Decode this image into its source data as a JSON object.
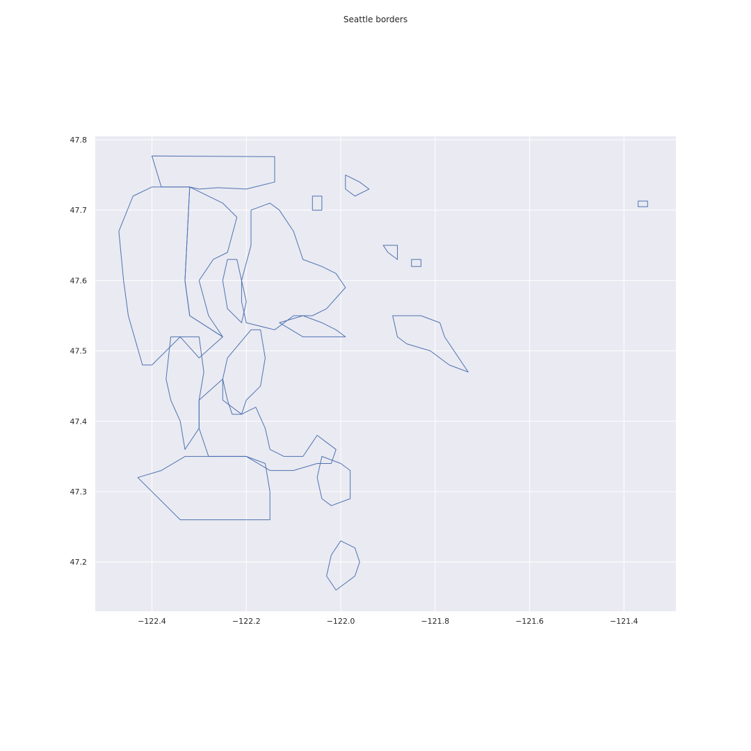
{
  "chart_data": {
    "type": "map",
    "title": "Seattle borders",
    "xlabel": "",
    "ylabel": "",
    "xlim": [
      -122.52,
      -121.29
    ],
    "ylim": [
      47.13,
      47.805
    ],
    "x_ticks": [
      -122.4,
      -122.2,
      -122.0,
      -121.8,
      -121.6,
      -121.4
    ],
    "x_tick_labels": [
      "−122.4",
      "−122.2",
      "−122.0",
      "−121.8",
      "−121.6",
      "−121.4"
    ],
    "y_ticks": [
      47.2,
      47.3,
      47.4,
      47.5,
      47.6,
      47.7,
      47.8
    ],
    "y_tick_labels": [
      "47.2",
      "47.3",
      "47.4",
      "47.5",
      "47.6",
      "47.7",
      "47.8"
    ],
    "grid": true,
    "background_color": "#eaeaf2",
    "line_color": "#4c72b0",
    "boundaries": [
      [
        [
          -122.4,
          47.777
        ],
        [
          -122.14,
          47.776
        ],
        [
          -122.14,
          47.74
        ],
        [
          -122.2,
          47.73
        ],
        [
          -122.26,
          47.732
        ],
        [
          -122.3,
          47.73
        ],
        [
          -122.32,
          47.733
        ],
        [
          -122.38,
          47.733
        ],
        [
          -122.39,
          47.755
        ],
        [
          -122.4,
          47.777
        ]
      ],
      [
        [
          -122.4,
          47.733
        ],
        [
          -122.32,
          47.733
        ],
        [
          -122.33,
          47.6
        ],
        [
          -122.32,
          47.55
        ],
        [
          -122.25,
          47.52
        ],
        [
          -122.3,
          47.49
        ],
        [
          -122.34,
          47.52
        ],
        [
          -122.4,
          47.48
        ],
        [
          -122.42,
          47.48
        ],
        [
          -122.45,
          47.55
        ],
        [
          -122.46,
          47.6
        ],
        [
          -122.47,
          47.67
        ],
        [
          -122.44,
          47.72
        ],
        [
          -122.4,
          47.733
        ]
      ],
      [
        [
          -122.32,
          47.733
        ],
        [
          -122.25,
          47.71
        ],
        [
          -122.22,
          47.69
        ],
        [
          -122.24,
          47.64
        ],
        [
          -122.27,
          47.63
        ],
        [
          -122.3,
          47.6
        ],
        [
          -122.28,
          47.55
        ],
        [
          -122.25,
          47.52
        ],
        [
          -122.32,
          47.55
        ],
        [
          -122.33,
          47.6
        ],
        [
          -122.32,
          47.733
        ]
      ],
      [
        [
          -122.24,
          47.63
        ],
        [
          -122.25,
          47.6
        ],
        [
          -122.24,
          47.56
        ],
        [
          -122.21,
          47.54
        ],
        [
          -122.2,
          47.57
        ],
        [
          -122.21,
          47.6
        ],
        [
          -122.22,
          47.63
        ],
        [
          -122.24,
          47.63
        ]
      ],
      [
        [
          -122.19,
          47.7
        ],
        [
          -122.15,
          47.71
        ],
        [
          -122.13,
          47.7
        ],
        [
          -122.1,
          47.67
        ],
        [
          -122.08,
          47.63
        ],
        [
          -122.04,
          47.62
        ],
        [
          -122.01,
          47.61
        ],
        [
          -121.99,
          47.59
        ],
        [
          -122.03,
          47.56
        ],
        [
          -122.06,
          47.55
        ],
        [
          -122.1,
          47.55
        ],
        [
          -122.14,
          47.53
        ],
        [
          -122.2,
          47.54
        ],
        [
          -122.21,
          47.57
        ],
        [
          -122.21,
          47.6
        ],
        [
          -122.19,
          47.65
        ],
        [
          -122.19,
          47.7
        ]
      ],
      [
        [
          -122.13,
          47.54
        ],
        [
          -122.08,
          47.55
        ],
        [
          -122.04,
          47.54
        ],
        [
          -122.01,
          47.53
        ],
        [
          -121.99,
          47.52
        ],
        [
          -122.05,
          47.52
        ],
        [
          -122.08,
          47.52
        ],
        [
          -122.13,
          47.54
        ]
      ],
      [
        [
          -122.19,
          47.53
        ],
        [
          -122.17,
          47.53
        ],
        [
          -122.16,
          47.49
        ],
        [
          -122.17,
          47.45
        ],
        [
          -122.2,
          47.43
        ],
        [
          -122.21,
          47.41
        ],
        [
          -122.23,
          47.41
        ],
        [
          -122.24,
          47.43
        ],
        [
          -122.25,
          47.46
        ],
        [
          -122.24,
          47.49
        ],
        [
          -122.19,
          47.53
        ]
      ],
      [
        [
          -122.36,
          47.52
        ],
        [
          -122.3,
          47.52
        ],
        [
          -122.29,
          47.47
        ],
        [
          -122.3,
          47.43
        ],
        [
          -122.3,
          47.39
        ],
        [
          -122.33,
          47.36
        ],
        [
          -122.34,
          47.4
        ],
        [
          -122.36,
          47.43
        ],
        [
          -122.37,
          47.46
        ],
        [
          -122.36,
          47.52
        ]
      ],
      [
        [
          -122.3,
          47.43
        ],
        [
          -122.25,
          47.46
        ],
        [
          -122.25,
          47.43
        ],
        [
          -122.21,
          47.41
        ],
        [
          -122.18,
          47.42
        ],
        [
          -122.16,
          47.39
        ],
        [
          -122.15,
          47.36
        ],
        [
          -122.12,
          47.35
        ],
        [
          -122.08,
          47.35
        ],
        [
          -122.05,
          47.38
        ],
        [
          -122.03,
          47.37
        ],
        [
          -122.01,
          47.36
        ],
        [
          -122.02,
          47.34
        ],
        [
          -122.05,
          47.34
        ],
        [
          -122.1,
          47.33
        ],
        [
          -122.15,
          47.33
        ],
        [
          -122.2,
          47.35
        ],
        [
          -122.24,
          47.35
        ],
        [
          -122.28,
          47.35
        ],
        [
          -122.3,
          47.39
        ],
        [
          -122.3,
          47.43
        ]
      ],
      [
        [
          -122.43,
          47.32
        ],
        [
          -122.38,
          47.33
        ],
        [
          -122.33,
          47.35
        ],
        [
          -122.28,
          47.35
        ],
        [
          -122.24,
          47.35
        ],
        [
          -122.2,
          47.35
        ],
        [
          -122.16,
          47.34
        ],
        [
          -122.15,
          47.3
        ],
        [
          -122.15,
          47.26
        ],
        [
          -122.22,
          47.26
        ],
        [
          -122.28,
          47.26
        ],
        [
          -122.34,
          47.26
        ],
        [
          -122.43,
          47.32
        ]
      ],
      [
        [
          -122.04,
          47.35
        ],
        [
          -122.0,
          47.34
        ],
        [
          -121.98,
          47.33
        ],
        [
          -121.98,
          47.29
        ],
        [
          -122.02,
          47.28
        ],
        [
          -122.04,
          47.29
        ],
        [
          -122.05,
          47.32
        ],
        [
          -122.04,
          47.35
        ]
      ],
      [
        [
          -122.0,
          47.23
        ],
        [
          -121.97,
          47.22
        ],
        [
          -121.96,
          47.2
        ],
        [
          -121.97,
          47.18
        ],
        [
          -122.01,
          47.16
        ],
        [
          -122.03,
          47.18
        ],
        [
          -122.02,
          47.21
        ],
        [
          -122.0,
          47.23
        ]
      ],
      [
        [
          -121.99,
          47.75
        ],
        [
          -121.96,
          47.74
        ],
        [
          -121.94,
          47.73
        ],
        [
          -121.97,
          47.72
        ],
        [
          -121.99,
          47.73
        ],
        [
          -121.99,
          47.75
        ]
      ],
      [
        [
          -122.06,
          47.72
        ],
        [
          -122.04,
          47.72
        ],
        [
          -122.04,
          47.7
        ],
        [
          -122.06,
          47.7
        ],
        [
          -122.06,
          47.72
        ]
      ],
      [
        [
          -121.91,
          47.65
        ],
        [
          -121.88,
          47.65
        ],
        [
          -121.88,
          47.63
        ],
        [
          -121.9,
          47.64
        ],
        [
          -121.91,
          47.65
        ]
      ],
      [
        [
          -121.85,
          47.63
        ],
        [
          -121.83,
          47.63
        ],
        [
          -121.83,
          47.62
        ],
        [
          -121.85,
          47.62
        ],
        [
          -121.85,
          47.63
        ]
      ],
      [
        [
          -121.89,
          47.55
        ],
        [
          -121.83,
          47.55
        ],
        [
          -121.79,
          47.54
        ],
        [
          -121.78,
          47.52
        ],
        [
          -121.73,
          47.47
        ],
        [
          -121.77,
          47.48
        ],
        [
          -121.81,
          47.5
        ],
        [
          -121.86,
          47.51
        ],
        [
          -121.88,
          47.52
        ],
        [
          -121.89,
          47.55
        ]
      ],
      [
        [
          -121.37,
          47.713
        ],
        [
          -121.35,
          47.713
        ],
        [
          -121.35,
          47.705
        ],
        [
          -121.37,
          47.705
        ],
        [
          -121.37,
          47.713
        ]
      ]
    ]
  }
}
